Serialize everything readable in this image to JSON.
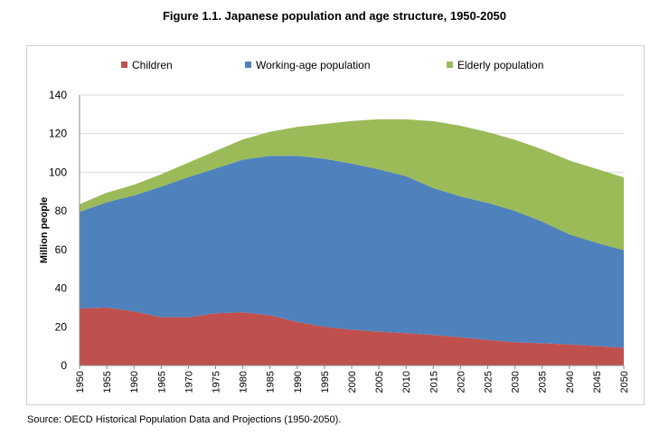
{
  "title": "Figure 1.1. Japanese population and age structure, 1950-2050",
  "source": "Source: OECD Historical Population Data and Projections (1950-2050).",
  "chart_data": {
    "type": "area",
    "stacked": true,
    "ylabel": "Million people",
    "xlabel": "",
    "ylim": [
      0,
      140
    ],
    "yticks": [
      0,
      20,
      40,
      60,
      80,
      100,
      120,
      140
    ],
    "grid": "horizontal",
    "legend_position": "top",
    "x": [
      1950,
      1955,
      1960,
      1965,
      1970,
      1975,
      1980,
      1985,
      1990,
      1995,
      2000,
      2005,
      2010,
      2015,
      2020,
      2025,
      2030,
      2035,
      2040,
      2045,
      2050
    ],
    "xticks": [
      1950,
      1955,
      1960,
      1965,
      1970,
      1975,
      1980,
      1985,
      1990,
      1995,
      2000,
      2005,
      2010,
      2015,
      2020,
      2025,
      2030,
      2035,
      2040,
      2045,
      2050
    ],
    "series": [
      {
        "name": "Children",
        "color": "#c0504d",
        "values": [
          29.5,
          30,
          28,
          25,
          25,
          27,
          27.5,
          26,
          22.5,
          20,
          18.5,
          17.5,
          16.7,
          15.8,
          14.6,
          13.2,
          12,
          11.5,
          10.9,
          10,
          9.2
        ]
      },
      {
        "name": "Working-age population",
        "color": "#4f81bd",
        "values": [
          50,
          54.5,
          60,
          67.5,
          72.5,
          75,
          79,
          82.5,
          86,
          87,
          86,
          84,
          81.3,
          76,
          72.9,
          71,
          68,
          63,
          57,
          53.5,
          50.5
        ]
      },
      {
        "name": "Elderly population",
        "color": "#9bbb59",
        "values": [
          4,
          5,
          5.5,
          6.5,
          7.5,
          9,
          10.5,
          12.5,
          15,
          18,
          22,
          26,
          29.4,
          34.6,
          36.6,
          36.6,
          36.8,
          37.4,
          38.2,
          38.2,
          37.7
        ]
      }
    ]
  }
}
